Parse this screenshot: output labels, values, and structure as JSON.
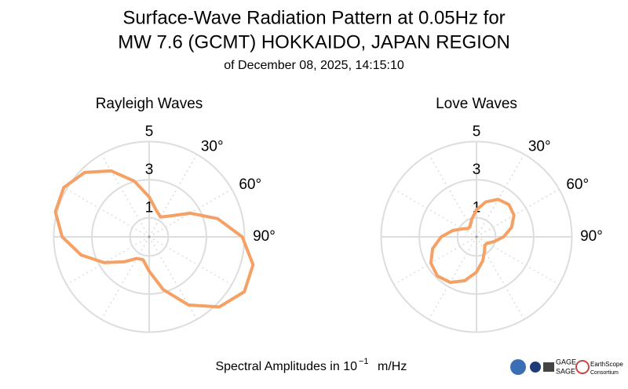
{
  "header": {
    "title": [
      "Surface-Wave Radiation Pattern at 0.05Hz for",
      "MW 7.6 (GCMT) HOKKAIDO, JAPAN REGION"
    ],
    "subtitle": "of December 08, 2025, 14:15:10"
  },
  "footer": {
    "prefix": "Spectral Amplitudes in 10",
    "exponent": "−1",
    "suffix": "m/Hz",
    "logos": [
      "GAGE",
      "SAGE",
      "EarthScope",
      "Consortium"
    ]
  },
  "chart_data": [
    {
      "type": "polar",
      "title": "Rayleigh Waves",
      "theta": [
        0,
        15,
        30,
        45,
        60,
        75,
        90,
        105,
        120,
        135,
        150,
        165,
        180,
        195,
        210,
        225,
        240,
        255,
        270,
        285,
        300,
        315,
        330,
        345
      ],
      "series": [
        {
          "color": "#f5a165",
          "values": [
            2.1,
            1.44,
            1.2,
            1.55,
            2.48,
            3.71,
            4.88,
            5.64,
            5.76,
            5.2,
            4.13,
            2.87,
            1.8,
            1.24,
            1.31,
            1.85,
            2.71,
            3.69,
            4.56,
            5.09,
            5.17,
            4.78,
            4.0,
            3.03
          ]
        }
      ],
      "ylim": [
        0,
        5
      ],
      "yticks": [
        1,
        3,
        5
      ],
      "xticks": [
        {
          "value": 30,
          "label": "30°"
        },
        {
          "value": 60,
          "label": "60°"
        },
        {
          "value": 90,
          "label": "90°"
        }
      ],
      "grid": true
    },
    {
      "type": "polar",
      "title": "Love Waves",
      "theta": [
        0,
        15,
        30,
        45,
        60,
        75,
        90,
        105,
        120,
        135,
        150,
        165,
        180,
        195,
        210,
        225,
        240,
        255,
        270,
        285,
        300,
        315,
        330,
        345
      ],
      "series": [
        {
          "color": "#f5a165",
          "values": [
            1.42,
            1.9,
            2.27,
            2.4,
            2.27,
            1.9,
            1.42,
            0.96,
            0.66,
            0.62,
            0.84,
            1.29,
            1.85,
            2.38,
            2.76,
            2.9,
            2.76,
            2.38,
            1.85,
            1.29,
            0.84,
            0.62,
            0.66,
            0.96
          ]
        }
      ],
      "ylim": [
        0,
        5
      ],
      "yticks": [
        1,
        3,
        5
      ],
      "xticks": [
        {
          "value": 30,
          "label": "30°"
        },
        {
          "value": 60,
          "label": "60°"
        },
        {
          "value": 90,
          "label": "90°"
        }
      ],
      "grid": true
    }
  ]
}
